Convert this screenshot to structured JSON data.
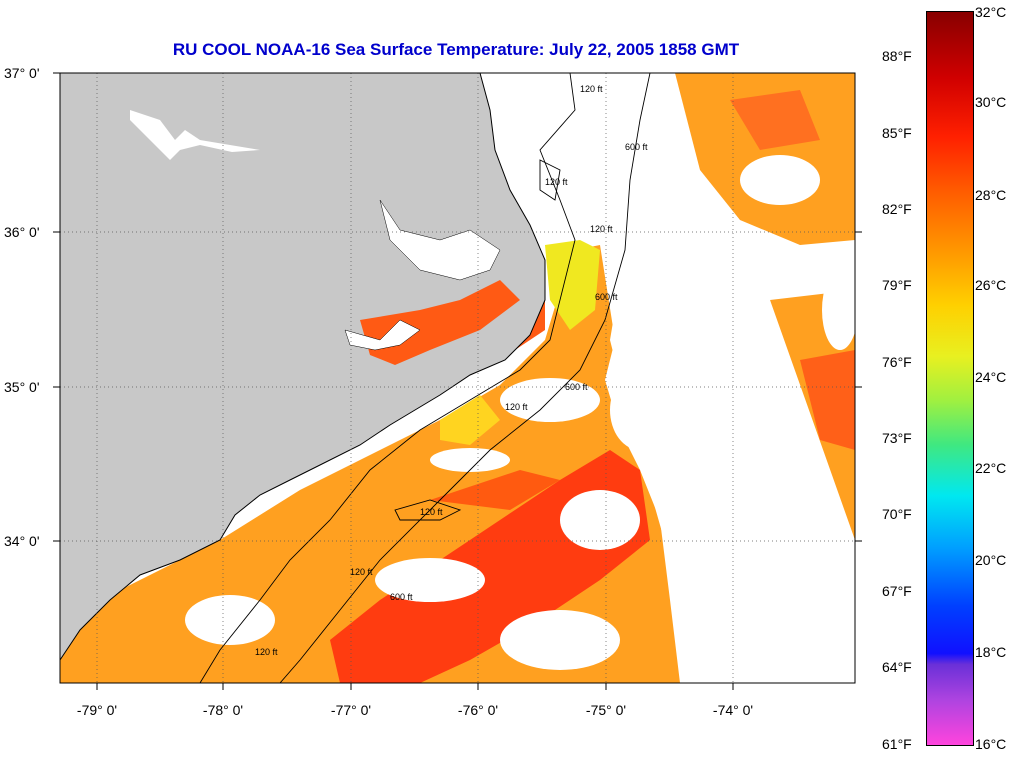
{
  "title": "RU COOL  NOAA-16  Sea Surface Temperature:  July 22, 2005 1858 GMT",
  "lat_labels": [
    "37° 0'",
    "36° 0'",
    "35° 0'",
    "34° 0'"
  ],
  "lon_labels": [
    "-79° 0'",
    "-78° 0'",
    "-77° 0'",
    "-76° 0'",
    "-75° 0'",
    "-74° 0'"
  ],
  "colorbar": {
    "fahrenheit_labels": [
      "88°F",
      "85°F",
      "82°F",
      "79°F",
      "76°F",
      "73°F",
      "70°F",
      "67°F",
      "64°F",
      "61°F"
    ],
    "celsius_labels": [
      "32°C",
      "30°C",
      "28°C",
      "26°C",
      "24°C",
      "22°C",
      "20°C",
      "18°C",
      "16°C"
    ]
  },
  "contour_labels": [
    "120 ft",
    "600 ft",
    "120 ft",
    "120 ft",
    "600 ft",
    "120 ft",
    "600 ft",
    "120 ft",
    "120 ft",
    "600 ft",
    "120 ft"
  ],
  "colors": {
    "land": "#c8c8c8",
    "title": "#0000cc",
    "grid": "#555555"
  }
}
